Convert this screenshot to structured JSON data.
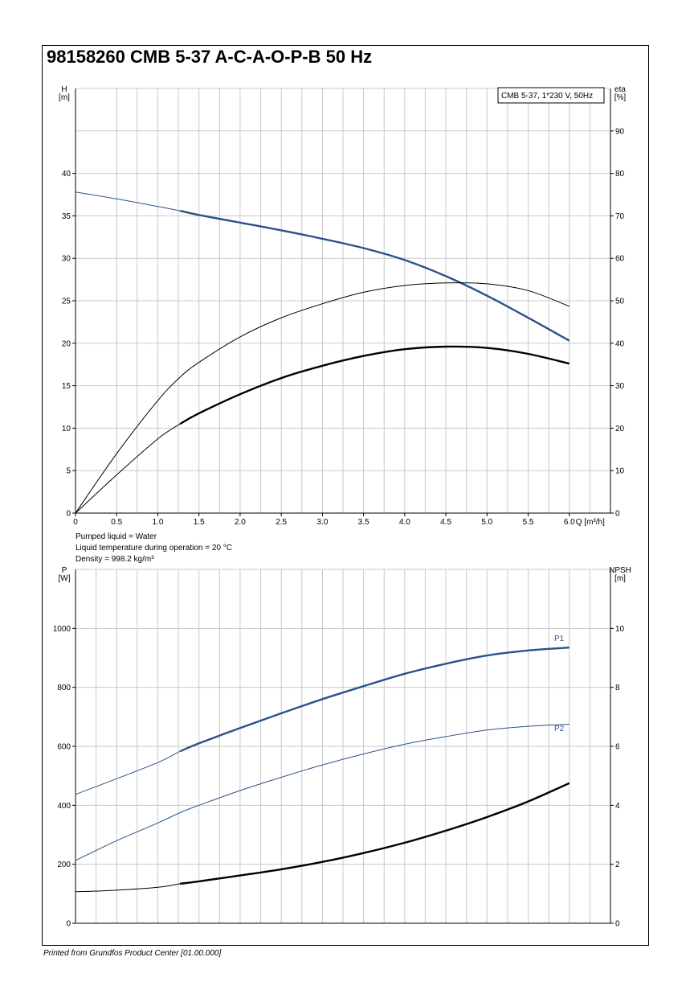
{
  "title": "98158260 CMB 5-37 A-C-A-O-P-B 50 Hz",
  "footer": "Printed from Grundfos Product Center [01.00.000]",
  "info": [
    "Pumped liquid = Water",
    "Liquid temperature during operation = 20 °C",
    "Density = 998.2 kg/m³"
  ],
  "colors": {
    "blue": "#2b5288",
    "black": "#000000",
    "grid": "#c8c8c8"
  },
  "chart_data": [
    {
      "type": "line",
      "legend_box": "CMB 5-37, 1*230 V, 50Hz",
      "x_axis": {
        "label": "Q [m³/h]",
        "range": [
          0,
          6.5
        ],
        "ticks": [
          0,
          0.5,
          1.0,
          1.5,
          2.0,
          2.5,
          3.0,
          3.5,
          4.0,
          4.5,
          5.0,
          5.5,
          6.0
        ],
        "tick_labels": [
          "0",
          "0.5",
          "1.0",
          "1.5",
          "2.0",
          "2.5",
          "3.0",
          "3.5",
          "4.0",
          "4.5",
          "5.0",
          "5.5",
          "6.0"
        ]
      },
      "y_left": {
        "label_line1": "H",
        "label_line2": "[m]",
        "range": [
          0,
          50
        ],
        "ticks": [
          0,
          5,
          10,
          15,
          20,
          25,
          30,
          35,
          40
        ],
        "tick_labels": [
          "0",
          "5",
          "10",
          "15",
          "20",
          "25",
          "30",
          "35",
          "40"
        ]
      },
      "y_right": {
        "label_line1": "eta",
        "label_line2": "[%]",
        "range": [
          0,
          100
        ],
        "ticks": [
          0,
          10,
          20,
          30,
          40,
          50,
          60,
          70,
          80,
          90
        ],
        "tick_labels": [
          "0",
          "10",
          "20",
          "30",
          "40",
          "50",
          "60",
          "70",
          "80",
          "90"
        ]
      },
      "grid": true,
      "series": [
        {
          "color": "blue",
          "axis": "left",
          "bold_from": 1.27,
          "x": [
            0,
            0.5,
            1.0,
            1.27,
            1.5,
            2.0,
            2.5,
            3.0,
            3.5,
            4.0,
            4.5,
            5.0,
            5.5,
            6.0
          ],
          "y": [
            37.8,
            37.0,
            36.1,
            35.6,
            35.1,
            34.2,
            33.3,
            32.3,
            31.2,
            29.8,
            27.9,
            25.6,
            23.0,
            20.3
          ]
        },
        {
          "color": "black",
          "axis": "right",
          "bold_from": 6.1,
          "x": [
            0,
            0.5,
            1.0,
            1.27,
            1.5,
            2.0,
            2.5,
            3.0,
            3.5,
            4.0,
            4.5,
            5.0,
            5.5,
            6.0
          ],
          "y": [
            0,
            14,
            26.5,
            32,
            35.5,
            41.5,
            46,
            49.3,
            52,
            53.6,
            54.2,
            54,
            52.4,
            48.7
          ]
        },
        {
          "color": "black",
          "axis": "right",
          "bold_from": 1.27,
          "x": [
            0,
            0.5,
            1.0,
            1.27,
            1.5,
            2.0,
            2.5,
            3.0,
            3.5,
            4.0,
            4.5,
            5.0,
            5.5,
            6.0
          ],
          "y": [
            0,
            9,
            17.5,
            21,
            23.5,
            28,
            31.8,
            34.7,
            37,
            38.6,
            39.2,
            38.9,
            37.5,
            35.2
          ]
        }
      ]
    },
    {
      "type": "line",
      "x_axis": {
        "range": [
          0,
          6.5
        ],
        "ticks": [
          0,
          0.5,
          1.0,
          1.5,
          2.0,
          2.5,
          3.0,
          3.5,
          4.0,
          4.5,
          5.0,
          5.5,
          6.0
        ]
      },
      "y_left": {
        "label_line1": "P",
        "label_line2": "[W]",
        "range": [
          0,
          1200
        ],
        "ticks": [
          0,
          200,
          400,
          600,
          800,
          1000
        ],
        "tick_labels": [
          "0",
          "200",
          "400",
          "600",
          "800",
          "1000"
        ]
      },
      "y_right": {
        "label_line1": "NPSH",
        "label_line2": "[m]",
        "range": [
          0,
          12
        ],
        "ticks": [
          0,
          2,
          4,
          6,
          8,
          10
        ],
        "tick_labels": [
          "0",
          "2",
          "4",
          "6",
          "8",
          "10"
        ]
      },
      "grid": true,
      "series": [
        {
          "name": "P1",
          "color": "blue",
          "axis": "left",
          "bold_from": 1.27,
          "x": [
            0,
            0.5,
            1.0,
            1.27,
            1.5,
            2.0,
            2.5,
            3.0,
            3.5,
            4.0,
            4.5,
            5.0,
            5.5,
            6.0
          ],
          "y": [
            437,
            490,
            545,
            583,
            610,
            662,
            712,
            760,
            804,
            846,
            880,
            908,
            925,
            935
          ]
        },
        {
          "name": "P2",
          "color": "blue",
          "axis": "left",
          "bold_from": 6.1,
          "x": [
            0,
            0.5,
            1.0,
            1.27,
            1.5,
            2.0,
            2.5,
            3.0,
            3.5,
            4.0,
            4.5,
            5.0,
            5.5,
            6.0
          ],
          "y": [
            213,
            280,
            340,
            375,
            400,
            450,
            495,
            537,
            574,
            607,
            633,
            655,
            668,
            675
          ]
        },
        {
          "color": "black",
          "axis": "right",
          "bold_from": 1.27,
          "x": [
            0,
            0.5,
            1.0,
            1.27,
            1.5,
            2.0,
            2.5,
            3.0,
            3.5,
            4.0,
            4.5,
            5.0,
            5.5,
            6.0
          ],
          "y": [
            1.07,
            1.12,
            1.22,
            1.34,
            1.42,
            1.62,
            1.83,
            2.08,
            2.38,
            2.73,
            3.14,
            3.6,
            4.13,
            4.75
          ]
        }
      ]
    }
  ]
}
